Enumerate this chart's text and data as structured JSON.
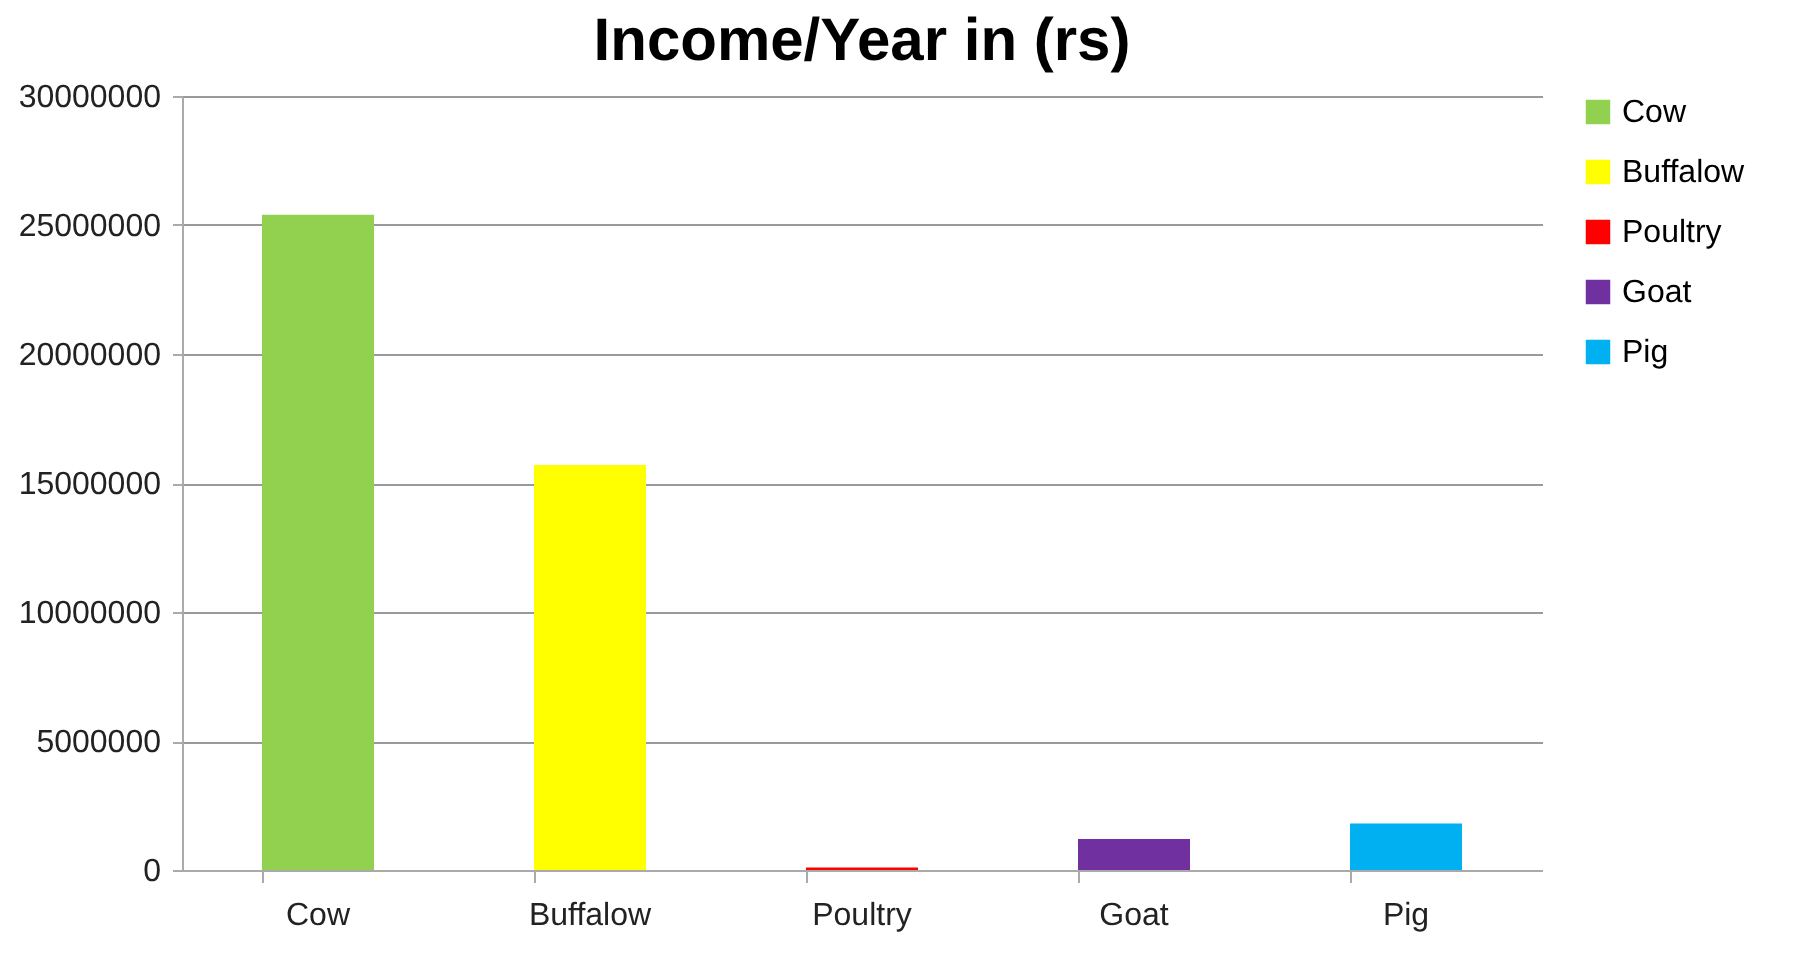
{
  "chart_data": {
    "type": "bar",
    "title": "Income/Year in (rs)",
    "categories": [
      "Cow",
      "Buffalow",
      "Poultry",
      "Goat",
      "Pig"
    ],
    "stacked": true,
    "series": [
      {
        "name": "Cow",
        "color": "#92d050",
        "values": [
          25400000,
          null,
          null,
          null,
          null
        ]
      },
      {
        "name": "Buffalow",
        "color": "#ffff00",
        "values": [
          null,
          15700000,
          null,
          null,
          null
        ]
      },
      {
        "name": "Poultry",
        "color": "#ff0000",
        "values": [
          null,
          null,
          100000,
          null,
          null
        ]
      },
      {
        "name": "Goat",
        "color": "#7030a0",
        "values": [
          null,
          null,
          null,
          1200000,
          null
        ]
      },
      {
        "name": "Pig",
        "color": "#00b0f0",
        "values": [
          null,
          null,
          null,
          null,
          1800000
        ]
      }
    ],
    "ylim": [
      0,
      30000000
    ],
    "yticks": [
      0,
      5000000,
      10000000,
      15000000,
      20000000,
      25000000,
      30000000
    ],
    "grid": "y",
    "legend": "right"
  }
}
